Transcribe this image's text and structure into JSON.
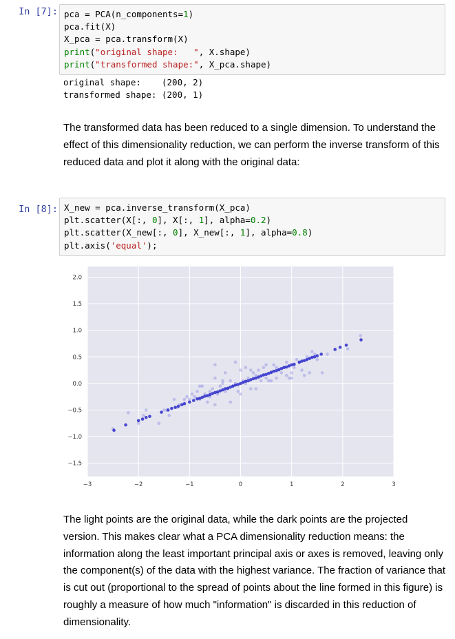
{
  "cells": [
    {
      "prompt": "In [7]:",
      "code_lines": [
        [
          {
            "t": "pca = PCA(n_components=",
            "c": ""
          },
          {
            "t": "1",
            "c": "num"
          },
          {
            "t": ")",
            "c": ""
          }
        ],
        [
          {
            "t": "pca.fit(X)",
            "c": ""
          }
        ],
        [
          {
            "t": "X_pca = pca.transform(X)",
            "c": ""
          }
        ],
        [
          {
            "t": "print",
            "c": "kw"
          },
          {
            "t": "(",
            "c": ""
          },
          {
            "t": "\"original shape:   \"",
            "c": "str"
          },
          {
            "t": ", X.shape)",
            "c": ""
          }
        ],
        [
          {
            "t": "print",
            "c": "kw"
          },
          {
            "t": "(",
            "c": ""
          },
          {
            "t": "\"transformed shape:\"",
            "c": "str"
          },
          {
            "t": ", X_pca.shape)",
            "c": ""
          }
        ]
      ],
      "output_lines": [
        "original shape:    (200, 2)",
        "transformed shape: (200, 1)"
      ]
    },
    {
      "prompt": "In [8]:",
      "code_lines": [
        [
          {
            "t": "X_new = pca.inverse_transform(X_pca)",
            "c": ""
          }
        ],
        [
          {
            "t": "plt.scatter(X[:, ",
            "c": ""
          },
          {
            "t": "0",
            "c": "num"
          },
          {
            "t": "], X[:, ",
            "c": ""
          },
          {
            "t": "1",
            "c": "num"
          },
          {
            "t": "], alpha=",
            "c": ""
          },
          {
            "t": "0.2",
            "c": "num"
          },
          {
            "t": ")",
            "c": ""
          }
        ],
        [
          {
            "t": "plt.scatter(X_new[:, ",
            "c": ""
          },
          {
            "t": "0",
            "c": "num"
          },
          {
            "t": "], X_new[:, ",
            "c": ""
          },
          {
            "t": "1",
            "c": "num"
          },
          {
            "t": "], alpha=",
            "c": ""
          },
          {
            "t": "0.8",
            "c": "num"
          },
          {
            "t": ")",
            "c": ""
          }
        ],
        [
          {
            "t": "plt.axis(",
            "c": ""
          },
          {
            "t": "'equal'",
            "c": "str"
          },
          {
            "t": ");",
            "c": ""
          }
        ]
      ]
    }
  ],
  "markdown": {
    "para1": "The transformed data has been reduced to a single dimension. To understand the effect of this dimensionality reduction, we can perform the inverse transform of this reduced data and plot it along with the original data:",
    "para2": "The light points are the original data, while the dark points are the projected version. This makes clear what a PCA dimensionality reduction means: the information along the least important principal axis or axes is removed, leaving only the component(s) of the data with the highest variance. The fraction of variance that is cut out (proportional to the spread of points about the line formed in this figure) is roughly a measure of how much \"information\" is discarded in this reduction of dimensionality."
  },
  "colors": {
    "plot_bg": "#e5e5f0",
    "grid": "#ffffff",
    "point_color": "#2020c8"
  },
  "chart_data": {
    "type": "scatter",
    "xlim": [
      -3,
      3
    ],
    "ylim": [
      -1.75,
      2.2
    ],
    "x_ticks": [
      -3,
      -2,
      -1,
      0,
      1,
      2,
      3
    ],
    "x_tick_labels": [
      "−3",
      "−2",
      "−1",
      "0",
      "1",
      "2",
      "3"
    ],
    "y_ticks": [
      2.0,
      1.5,
      1.0,
      0.5,
      0.0,
      -0.5,
      -1.0,
      -1.5
    ],
    "y_tick_labels": [
      "2.0",
      "1.5",
      "1.0",
      "0.5",
      "0.0",
      "−0.5",
      "−1.0",
      "−1.5"
    ],
    "grid": true,
    "series": [
      {
        "alpha": 0.2,
        "x": [
          -2.5,
          -2.2,
          -2.0,
          -1.9,
          -1.85,
          -1.6,
          -1.5,
          -1.45,
          -1.3,
          -1.25,
          -1.2,
          -1.1,
          -1.05,
          -1.0,
          -0.95,
          -0.9,
          -0.85,
          -0.8,
          -0.75,
          -0.7,
          -0.65,
          -0.6,
          -0.55,
          -0.5,
          -0.5,
          -0.45,
          -0.4,
          -0.35,
          -0.3,
          -0.3,
          -0.25,
          -0.2,
          -0.15,
          -0.1,
          -0.05,
          0.0,
          0.05,
          0.1,
          0.15,
          0.2,
          0.25,
          0.3,
          0.35,
          0.4,
          0.45,
          0.5,
          0.55,
          0.6,
          0.65,
          0.7,
          0.75,
          0.8,
          0.85,
          0.9,
          0.95,
          1.0,
          1.05,
          1.1,
          1.15,
          1.2,
          1.3,
          1.35,
          1.4,
          1.45,
          1.5,
          1.6,
          1.7,
          2.1,
          2.35,
          -0.35,
          -0.2,
          0.1,
          -0.1,
          0.3,
          0.5,
          0.7,
          0.9,
          -0.6,
          -0.8,
          -1.4,
          0.0,
          0.2,
          -0.5,
          0.6,
          1.0,
          1.25
        ],
        "y": [
          -0.85,
          -0.55,
          -0.75,
          -0.6,
          -0.5,
          -0.75,
          -0.5,
          -0.5,
          -0.3,
          -0.45,
          -0.4,
          -0.3,
          -0.25,
          -0.3,
          -0.2,
          -0.25,
          -0.15,
          -0.3,
          -0.05,
          -0.2,
          -0.35,
          -0.25,
          -0.1,
          0.1,
          -0.4,
          -0.2,
          -0.05,
          0.0,
          -0.15,
          0.2,
          -0.1,
          0.05,
          -0.05,
          0.0,
          -0.15,
          0.25,
          0.05,
          0.0,
          0.1,
          -0.1,
          0.2,
          0.15,
          0.25,
          0.05,
          0.3,
          0.1,
          0.05,
          0.2,
          0.35,
          0.3,
          0.25,
          0.2,
          0.3,
          0.4,
          0.1,
          0.2,
          0.3,
          0.45,
          0.4,
          0.25,
          0.5,
          0.2,
          0.6,
          0.55,
          0.45,
          0.2,
          0.55,
          0.65,
          0.9,
          0.05,
          -0.35,
          0.3,
          0.4,
          -0.1,
          0.35,
          0.1,
          0.15,
          -0.15,
          -0.05,
          -0.6,
          -0.2,
          0.25,
          0.35,
          0.05,
          0.1,
          0.15
        ]
      },
      {
        "alpha": 0.8,
        "x": [
          -2.48,
          -2.25,
          -2.0,
          -1.92,
          -1.85,
          -1.78,
          -1.55,
          -1.42,
          -1.35,
          -1.28,
          -1.22,
          -1.15,
          -1.1,
          -1.0,
          -0.92,
          -0.85,
          -0.8,
          -0.75,
          -0.7,
          -0.65,
          -0.6,
          -0.55,
          -0.5,
          -0.45,
          -0.4,
          -0.35,
          -0.3,
          -0.25,
          -0.2,
          -0.15,
          -0.1,
          -0.05,
          0.0,
          0.05,
          0.1,
          0.15,
          0.2,
          0.25,
          0.3,
          0.35,
          0.4,
          0.45,
          0.5,
          0.55,
          0.6,
          0.65,
          0.7,
          0.75,
          0.8,
          0.85,
          0.9,
          0.95,
          1.0,
          1.05,
          1.15,
          1.2,
          1.25,
          1.3,
          1.35,
          1.4,
          1.45,
          1.5,
          1.58,
          1.85,
          1.95,
          2.07,
          2.36
        ],
        "y": [
          -0.88,
          -0.78,
          -0.7,
          -0.67,
          -0.64,
          -0.62,
          -0.54,
          -0.5,
          -0.47,
          -0.45,
          -0.43,
          -0.4,
          -0.38,
          -0.35,
          -0.32,
          -0.29,
          -0.28,
          -0.26,
          -0.24,
          -0.23,
          -0.21,
          -0.19,
          -0.17,
          -0.16,
          -0.14,
          -0.12,
          -0.1,
          -0.09,
          -0.07,
          -0.05,
          -0.03,
          -0.02,
          0.0,
          0.02,
          0.04,
          0.05,
          0.07,
          0.09,
          0.1,
          0.12,
          0.14,
          0.16,
          0.17,
          0.19,
          0.21,
          0.23,
          0.24,
          0.26,
          0.28,
          0.3,
          0.31,
          0.33,
          0.35,
          0.36,
          0.4,
          0.42,
          0.43,
          0.45,
          0.47,
          0.49,
          0.5,
          0.52,
          0.55,
          0.64,
          0.68,
          0.72,
          0.82
        ]
      }
    ]
  }
}
